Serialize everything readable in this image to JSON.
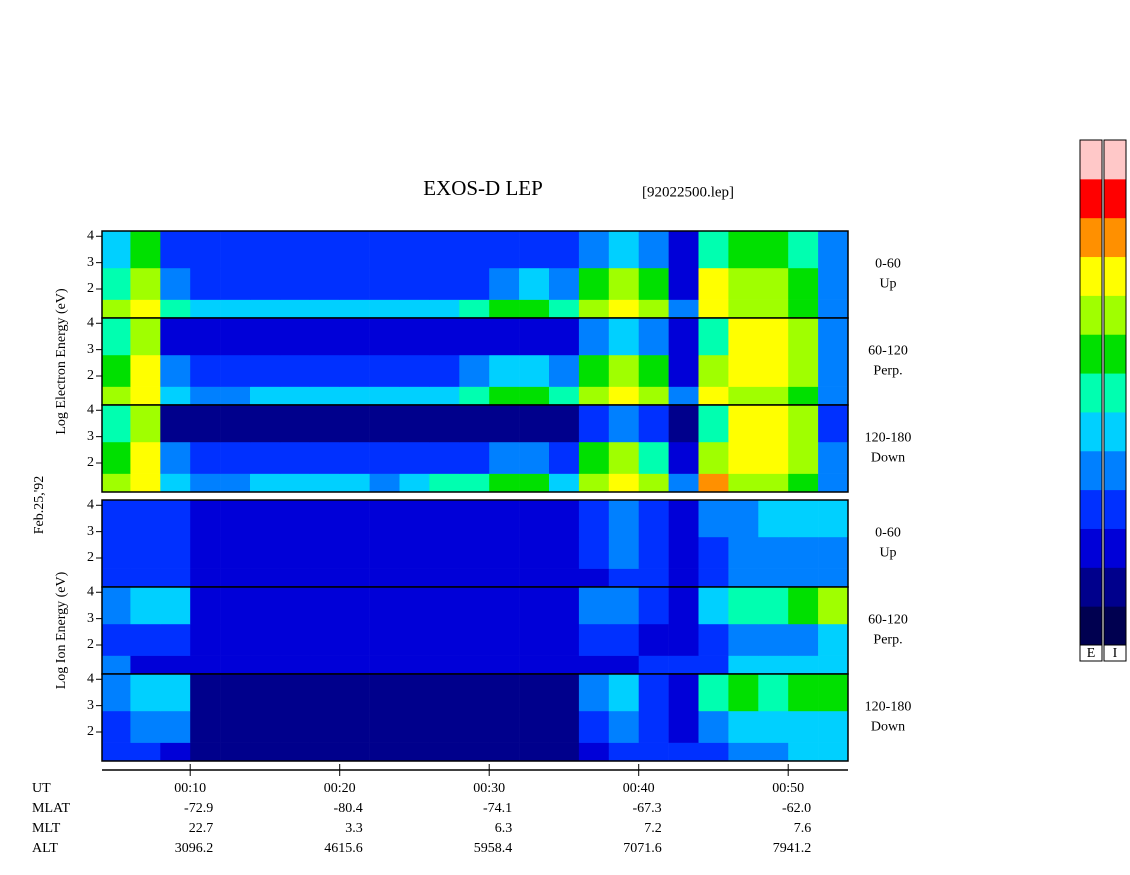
{
  "chart_data": {
    "type": "spectrogram",
    "title": "EXOS-D LEP",
    "subtitle": "[92022500.lep]",
    "date_label": "Feb.25,'92",
    "xlim": [
      4.1,
      54
    ],
    "xticks": [
      {
        "value": 10,
        "label": "00:10"
      },
      {
        "value": 20,
        "label": "00:20"
      },
      {
        "value": 30,
        "label": "00:30"
      },
      {
        "value": 40,
        "label": "00:40"
      },
      {
        "value": 50,
        "label": "00:50"
      }
    ],
    "time_bins": [
      4.1,
      6,
      8,
      10,
      12,
      14,
      16,
      18,
      20,
      22,
      24,
      26,
      28,
      30,
      32,
      34,
      36,
      38,
      40,
      42,
      44,
      46,
      48,
      50,
      52,
      54
    ],
    "energy_bins": [
      0.9,
      1.6,
      2.8,
      4.2
    ],
    "ylim": [
      0.9,
      4.2
    ],
    "yticks": [
      2,
      3,
      4
    ],
    "zlim": [
      0,
      12
    ],
    "colorscale": [
      "#000050",
      "#00008c",
      "#0000d8",
      "#0030ff",
      "#0080ff",
      "#00d0ff",
      "#00ffb0",
      "#00e000",
      "#a0ff00",
      "#ffff00",
      "#ff9000",
      "#ff0000",
      "#ffc8c8"
    ],
    "colorbar_labels": [
      "E",
      "I"
    ],
    "groups": [
      {
        "label": "Log Electron Energy (eV)",
        "panels": [
          {
            "angle": "0-60",
            "direction": "Up",
            "values": [
              [
                8,
                9,
                6,
                5,
                5,
                5,
                5,
                5,
                5,
                5,
                5,
                5,
                6,
                7,
                7,
                6,
                8,
                9,
                8,
                4,
                9,
                8,
                8,
                7,
                4
              ],
              [
                6,
                8,
                4,
                3,
                3,
                3,
                3,
                3,
                3,
                3,
                3,
                3,
                3,
                4,
                5,
                4,
                7,
                8,
                7,
                2,
                9,
                8,
                8,
                7,
                4
              ],
              [
                5,
                7,
                3,
                3,
                3,
                3,
                3,
                3,
                3,
                3,
                3,
                3,
                3,
                3,
                3,
                3,
                4,
                5,
                4,
                2,
                6,
                7,
                7,
                6,
                4
              ]
            ]
          },
          {
            "angle": "60-120",
            "direction": "Perp.",
            "values": [
              [
                8,
                9,
                5,
                4,
                4,
                5,
                5,
                5,
                5,
                5,
                5,
                5,
                6,
                7,
                7,
                6,
                8,
                9,
                8,
                4,
                9,
                8,
                8,
                7,
                4
              ],
              [
                7,
                9,
                4,
                3,
                3,
                3,
                3,
                3,
                3,
                3,
                3,
                3,
                4,
                5,
                5,
                4,
                7,
                8,
                7,
                2,
                8,
                9,
                9,
                8,
                4
              ],
              [
                6,
                8,
                2,
                2,
                2,
                2,
                2,
                2,
                2,
                2,
                2,
                2,
                2,
                2,
                2,
                2,
                4,
                5,
                4,
                2,
                6,
                9,
                9,
                8,
                4
              ]
            ]
          },
          {
            "angle": "120-180",
            "direction": "Down",
            "values": [
              [
                8,
                9,
                5,
                4,
                4,
                5,
                5,
                5,
                5,
                4,
                5,
                6,
                6,
                7,
                7,
                5,
                8,
                9,
                8,
                4,
                10,
                8,
                8,
                7,
                4
              ],
              [
                7,
                9,
                4,
                3,
                3,
                3,
                3,
                3,
                3,
                3,
                3,
                3,
                3,
                4,
                4,
                3,
                7,
                8,
                6,
                2,
                8,
                9,
                9,
                8,
                4
              ],
              [
                6,
                8,
                1,
                1,
                1,
                1,
                1,
                1,
                1,
                1,
                1,
                1,
                1,
                1,
                1,
                1,
                3,
                4,
                3,
                1,
                6,
                9,
                9,
                8,
                3
              ]
            ]
          }
        ]
      },
      {
        "label": "Log Ion Energy (eV)",
        "panels": [
          {
            "angle": "0-60",
            "direction": "Up",
            "values": [
              [
                3,
                3,
                3,
                2,
                2,
                2,
                2,
                2,
                2,
                2,
                2,
                2,
                2,
                2,
                2,
                2,
                2,
                3,
                3,
                2,
                3,
                4,
                4,
                4,
                4
              ],
              [
                3,
                3,
                3,
                2,
                2,
                2,
                2,
                2,
                2,
                2,
                2,
                2,
                2,
                2,
                2,
                2,
                3,
                4,
                3,
                2,
                3,
                4,
                4,
                4,
                4
              ],
              [
                3,
                3,
                3,
                2,
                2,
                2,
                2,
                2,
                2,
                2,
                2,
                2,
                2,
                2,
                2,
                2,
                3,
                4,
                3,
                2,
                4,
                4,
                5,
                5,
                5
              ]
            ]
          },
          {
            "angle": "60-120",
            "direction": "Perp.",
            "values": [
              [
                4,
                2,
                2,
                2,
                2,
                2,
                2,
                2,
                2,
                2,
                2,
                2,
                2,
                2,
                2,
                2,
                2,
                2,
                3,
                3,
                3,
                5,
                5,
                5,
                5
              ],
              [
                3,
                3,
                3,
                2,
                2,
                2,
                2,
                2,
                2,
                2,
                2,
                2,
                2,
                2,
                2,
                2,
                3,
                3,
                2,
                2,
                3,
                4,
                4,
                4,
                5
              ],
              [
                4,
                5,
                5,
                2,
                2,
                2,
                2,
                2,
                2,
                2,
                2,
                2,
                2,
                2,
                2,
                2,
                4,
                4,
                3,
                2,
                5,
                6,
                6,
                7,
                8
              ]
            ]
          },
          {
            "angle": "120-180",
            "direction": "Down",
            "values": [
              [
                3,
                3,
                2,
                1,
                1,
                1,
                1,
                1,
                1,
                1,
                1,
                1,
                1,
                1,
                1,
                1,
                2,
                3,
                3,
                3,
                3,
                4,
                4,
                5,
                5
              ],
              [
                3,
                4,
                4,
                1,
                1,
                1,
                1,
                1,
                1,
                1,
                1,
                1,
                1,
                1,
                1,
                1,
                3,
                4,
                3,
                2,
                4,
                5,
                5,
                5,
                5
              ],
              [
                4,
                5,
                5,
                1,
                1,
                1,
                1,
                1,
                1,
                1,
                1,
                1,
                1,
                1,
                1,
                1,
                4,
                5,
                3,
                2,
                6,
                7,
                6,
                7,
                7
              ]
            ]
          }
        ]
      }
    ],
    "ephemeris": {
      "labels": [
        "UT",
        "MLAT",
        "MLT",
        "ALT"
      ],
      "rows": [
        [
          "-72.9",
          "-80.4",
          "-74.1",
          "-67.3",
          "-62.0"
        ],
        [
          "22.7",
          "3.3",
          "6.3",
          "7.2",
          "7.6"
        ],
        [
          "3096.2",
          "4615.6",
          "5958.4",
          "7071.6",
          "7941.2"
        ]
      ]
    }
  }
}
